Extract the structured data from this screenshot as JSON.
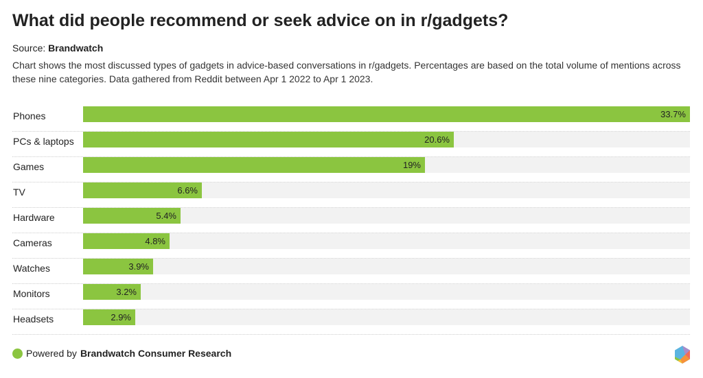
{
  "header": {
    "title": "What did people recommend or seek advice on in r/gadgets?",
    "source_label": "Source:",
    "source_name": "Brandwatch",
    "description": "Chart shows the most discussed types of gadgets in advice-based conversations in r/gadgets. Percentages are based on the total volume of mentions across these nine categories. Data gathered from Reddit between Apr 1 2022 to Apr 1 2023."
  },
  "chart_data": {
    "type": "bar",
    "orientation": "horizontal",
    "categories": [
      "Phones",
      "PCs & laptops",
      "Games",
      "TV",
      "Hardware",
      "Cameras",
      "Watches",
      "Monitors",
      "Headsets"
    ],
    "values": [
      33.7,
      20.6,
      19,
      6.6,
      5.4,
      4.8,
      3.9,
      3.2,
      2.9
    ],
    "value_labels": [
      "33.7%",
      "20.6%",
      "19%",
      "6.6%",
      "5.4%",
      "4.8%",
      "3.9%",
      "3.2%",
      "2.9%"
    ],
    "xlim": [
      0,
      33.7
    ],
    "bar_color": "#8bc540",
    "track_color": "#f2f2f2"
  },
  "footer": {
    "powered_by": "Powered by",
    "brand": "Brandwatch Consumer Research"
  }
}
